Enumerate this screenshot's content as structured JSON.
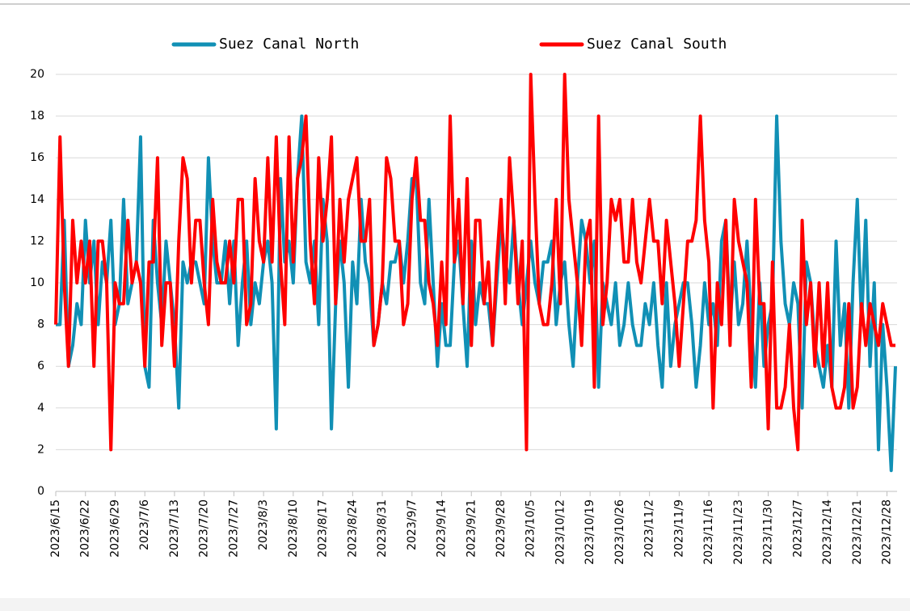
{
  "chart_data": {
    "type": "line",
    "categories": [
      "2023/6/15",
      null,
      null,
      null,
      null,
      null,
      null,
      "2023/6/22",
      null,
      null,
      null,
      null,
      null,
      null,
      "2023/6/29",
      null,
      null,
      null,
      null,
      null,
      null,
      "2023/7/6",
      null,
      null,
      null,
      null,
      null,
      null,
      "2023/7/13",
      null,
      null,
      null,
      null,
      null,
      null,
      "2023/7/20",
      null,
      null,
      null,
      null,
      null,
      null,
      "2023/7/27",
      null,
      null,
      null,
      null,
      null,
      null,
      "2023/8/3",
      null,
      null,
      null,
      null,
      null,
      null,
      "2023/8/10",
      null,
      null,
      null,
      null,
      null,
      null,
      "2023/8/17",
      null,
      null,
      null,
      null,
      null,
      null,
      "2023/8/24",
      null,
      null,
      null,
      null,
      null,
      null,
      "2023/8/31",
      null,
      null,
      null,
      null,
      null,
      null,
      "2023/9/7",
      null,
      null,
      null,
      null,
      null,
      null,
      "2023/9/14",
      null,
      null,
      null,
      null,
      null,
      null,
      "2023/9/21",
      null,
      null,
      null,
      null,
      null,
      null,
      "2023/9/28",
      null,
      null,
      null,
      null,
      null,
      null,
      "2023/10/5",
      null,
      null,
      null,
      null,
      null,
      null,
      "2023/10/12",
      null,
      null,
      null,
      null,
      null,
      null,
      "2023/10/19",
      null,
      null,
      null,
      null,
      null,
      null,
      "2023/10/26",
      null,
      null,
      null,
      null,
      null,
      null,
      "2023/11/2",
      null,
      null,
      null,
      null,
      null,
      null,
      "2023/11/9",
      null,
      null,
      null,
      null,
      null,
      null,
      "2023/11/16",
      null,
      null,
      null,
      null,
      null,
      null,
      "2023/11/23",
      null,
      null,
      null,
      null,
      null,
      null,
      "2023/11/30",
      null,
      null,
      null,
      null,
      null,
      null,
      "2023/12/7",
      null,
      null,
      null,
      null,
      null,
      null,
      "2023/12/14",
      null,
      null,
      null,
      null,
      null,
      null,
      "2023/12/21",
      null,
      null,
      null,
      null,
      null,
      null,
      "2023/12/28",
      null,
      null
    ],
    "series": [
      {
        "name": "Suez Canal North",
        "color": "#1190b5",
        "values": [
          8,
          8,
          13,
          6,
          7,
          9,
          8,
          13,
          10,
          12,
          8,
          11,
          10,
          13,
          8,
          9,
          14,
          9,
          10,
          11,
          17,
          6,
          5,
          13,
          10,
          8,
          12,
          10,
          8,
          4,
          11,
          10,
          11,
          11,
          10,
          9,
          16,
          12,
          10,
          10,
          12,
          9,
          12,
          7,
          10,
          12,
          8,
          10,
          9,
          11,
          12,
          10,
          3,
          15,
          11,
          12,
          10,
          15,
          18,
          11,
          10,
          12,
          8,
          14,
          12,
          3,
          9,
          12,
          10,
          5,
          11,
          9,
          14,
          11,
          10,
          7,
          8,
          10,
          9,
          11,
          11,
          12,
          10,
          12,
          15,
          15,
          10,
          9,
          14,
          10,
          6,
          9,
          7,
          7,
          11,
          12,
          9,
          6,
          12,
          8,
          10,
          9,
          9,
          7,
          10,
          13,
          11,
          10,
          13,
          10,
          8,
          10,
          12,
          10,
          9,
          11,
          11,
          12,
          8,
          10,
          11,
          8,
          6,
          10,
          13,
          12,
          10,
          12,
          5,
          10,
          9,
          8,
          10,
          7,
          8,
          10,
          8,
          7,
          7,
          9,
          8,
          10,
          7,
          5,
          10,
          6,
          8,
          9,
          10,
          10,
          8,
          5,
          7,
          10,
          8,
          9,
          7,
          12,
          13,
          8,
          11,
          8,
          9,
          12,
          8,
          5,
          10,
          6,
          8,
          9,
          18,
          12,
          9,
          8,
          10,
          9,
          4,
          11,
          10,
          7,
          6,
          5,
          7,
          5,
          12,
          7,
          9,
          4,
          10,
          14,
          8,
          13,
          6,
          10,
          2,
          8,
          5,
          1,
          6
        ]
      },
      {
        "name": "Suez Canal South",
        "color": "#ff0000",
        "values": [
          8,
          17,
          10,
          6,
          13,
          10,
          12,
          10,
          12,
          6,
          12,
          12,
          10,
          2,
          10,
          9,
          9,
          13,
          10,
          11,
          10,
          6,
          11,
          11,
          16,
          7,
          10,
          10,
          6,
          12,
          16,
          15,
          10,
          13,
          13,
          10,
          8,
          14,
          11,
          10,
          10,
          12,
          10,
          14,
          14,
          8,
          9,
          15,
          12,
          11,
          16,
          11,
          17,
          11,
          8,
          17,
          11,
          15,
          16,
          18,
          12,
          9,
          16,
          12,
          14,
          17,
          9,
          14,
          11,
          14,
          15,
          16,
          12,
          12,
          14,
          7,
          8,
          10,
          16,
          15,
          12,
          12,
          8,
          9,
          14,
          16,
          13,
          13,
          10,
          9,
          7,
          11,
          8,
          18,
          11,
          14,
          9,
          15,
          7,
          13,
          13,
          9,
          11,
          7,
          11,
          14,
          9,
          16,
          13,
          9,
          12,
          2,
          20,
          14,
          9,
          8,
          8,
          10,
          14,
          9,
          20,
          14,
          12,
          10,
          7,
          12,
          13,
          5,
          18,
          8,
          10,
          14,
          13,
          14,
          11,
          11,
          14,
          11,
          10,
          12,
          14,
          12,
          12,
          9,
          13,
          11,
          9,
          6,
          9,
          12,
          12,
          13,
          18,
          13,
          11,
          4,
          10,
          8,
          13,
          7,
          14,
          12,
          11,
          10,
          5,
          14,
          9,
          9,
          3,
          11,
          4,
          4,
          5,
          8,
          4,
          2,
          13,
          8,
          10,
          6,
          10,
          6,
          10,
          5,
          4,
          4,
          5,
          9,
          4,
          5,
          9,
          7,
          9,
          8,
          7,
          9,
          8,
          7,
          7
        ]
      }
    ],
    "ylim": [
      0,
      20
    ],
    "yticks": [
      0,
      2,
      4,
      6,
      8,
      10,
      12,
      14,
      16,
      18,
      20
    ],
    "grid": true,
    "legend": "top"
  }
}
